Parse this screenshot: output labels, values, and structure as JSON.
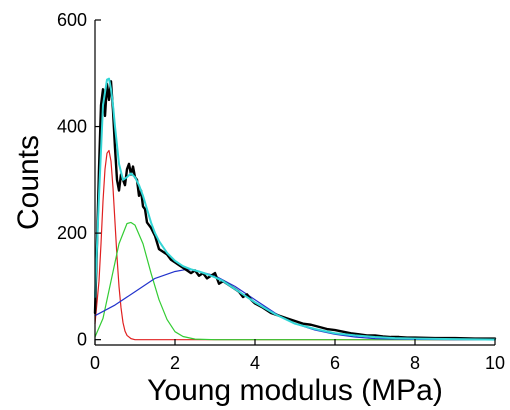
{
  "chart_data": {
    "type": "line",
    "title": "",
    "xlabel": "Young modulus (MPa)",
    "ylabel": "Counts",
    "xlim": [
      0,
      10
    ],
    "ylim": [
      -10,
      600
    ],
    "x_ticks": [
      0,
      2,
      4,
      6,
      8,
      10
    ],
    "x_tick_labels": [
      "0",
      "2",
      "4",
      "6",
      "8",
      "10"
    ],
    "y_ticks": [
      0,
      200,
      400,
      600
    ],
    "y_tick_labels": [
      "0",
      "200",
      "400",
      "600"
    ],
    "grid": false,
    "legend": "none",
    "series": [
      {
        "color": "#000000",
        "role": "measured histogram",
        "x": [
          0.0,
          0.05,
          0.1,
          0.15,
          0.2,
          0.25,
          0.3,
          0.35,
          0.4,
          0.45,
          0.5,
          0.55,
          0.6,
          0.65,
          0.7,
          0.75,
          0.8,
          0.85,
          0.9,
          0.95,
          1.0,
          1.05,
          1.1,
          1.15,
          1.2,
          1.25,
          1.3,
          1.4,
          1.5,
          1.6,
          1.7,
          1.8,
          1.9,
          2.0,
          2.1,
          2.2,
          2.3,
          2.4,
          2.5,
          2.6,
          2.7,
          2.8,
          2.9,
          3.0,
          3.1,
          3.2,
          3.3,
          3.4,
          3.5,
          3.6,
          3.7,
          3.8,
          3.9,
          4.0,
          4.2,
          4.4,
          4.6,
          4.8,
          5.0,
          5.2,
          5.4,
          5.6,
          5.8,
          6.0,
          6.2,
          6.4,
          6.6,
          6.8,
          7.0,
          7.2,
          7.4,
          7.6,
          7.8,
          8.0,
          8.5,
          9.0,
          9.5,
          10.0
        ],
        "y": [
          50,
          180,
          320,
          440,
          470,
          420,
          480,
          450,
          485,
          430,
          360,
          300,
          280,
          310,
          300,
          290,
          320,
          330,
          310,
          325,
          305,
          300,
          270,
          280,
          250,
          245,
          220,
          210,
          195,
          170,
          165,
          160,
          150,
          145,
          140,
          135,
          130,
          125,
          130,
          120,
          125,
          115,
          120,
          125,
          105,
          110,
          105,
          100,
          95,
          90,
          80,
          85,
          75,
          68,
          60,
          50,
          45,
          40,
          35,
          30,
          28,
          24,
          20,
          18,
          15,
          12,
          10,
          8,
          8,
          6,
          5,
          5,
          4,
          4,
          3,
          3,
          2,
          2
        ]
      },
      {
        "color": "#33d6d6",
        "role": "cumulative fit",
        "x": [
          0.0,
          0.1,
          0.2,
          0.3,
          0.35,
          0.4,
          0.45,
          0.5,
          0.6,
          0.7,
          0.8,
          0.9,
          1.0,
          1.1,
          1.2,
          1.3,
          1.4,
          1.5,
          1.6,
          1.8,
          2.0,
          2.2,
          2.4,
          2.6,
          2.8,
          3.0,
          3.2,
          3.4,
          3.6,
          3.8,
          4.0,
          4.5,
          5.0,
          5.5,
          6.0,
          6.5,
          7.0,
          7.5,
          8.0,
          9.0,
          10.0
        ],
        "y": [
          80,
          270,
          440,
          488,
          490,
          470,
          440,
          400,
          330,
          300,
          305,
          312,
          305,
          290,
          270,
          245,
          220,
          200,
          185,
          163,
          148,
          138,
          132,
          128,
          123,
          117,
          110,
          100,
          90,
          80,
          70,
          48,
          30,
          20,
          12,
          8,
          5,
          3,
          2,
          1,
          0
        ]
      },
      {
        "color": "#e02020",
        "role": "peak 1",
        "x": [
          0.0,
          0.1,
          0.15,
          0.2,
          0.25,
          0.3,
          0.35,
          0.4,
          0.45,
          0.5,
          0.55,
          0.6,
          0.65,
          0.7,
          0.75,
          0.8,
          0.9,
          1.0,
          1.2,
          1.5,
          2.0,
          10.0
        ],
        "y": [
          30,
          110,
          180,
          260,
          320,
          350,
          355,
          335,
          285,
          220,
          155,
          100,
          60,
          32,
          16,
          8,
          2,
          0,
          0,
          0,
          0,
          0
        ]
      },
      {
        "color": "#33cc33",
        "role": "peak 2",
        "x": [
          0.0,
          0.2,
          0.4,
          0.6,
          0.8,
          0.9,
          1.0,
          1.2,
          1.4,
          1.6,
          1.8,
          2.0,
          2.2,
          2.5,
          3.0,
          4.0,
          10.0
        ],
        "y": [
          5,
          40,
          110,
          180,
          218,
          220,
          215,
          180,
          125,
          75,
          38,
          15,
          6,
          1,
          0,
          0,
          0
        ]
      },
      {
        "color": "#2233cc",
        "role": "peak 3",
        "x": [
          0.0,
          0.5,
          1.0,
          1.5,
          2.0,
          2.3,
          2.5,
          3.0,
          3.5,
          4.0,
          4.5,
          5.0,
          5.5,
          6.0,
          6.5,
          7.0,
          8.0,
          9.0,
          10.0
        ],
        "y": [
          45,
          65,
          90,
          115,
          128,
          132,
          130,
          120,
          100,
          75,
          50,
          30,
          18,
          10,
          5,
          2,
          0.5,
          0,
          0
        ]
      }
    ]
  }
}
